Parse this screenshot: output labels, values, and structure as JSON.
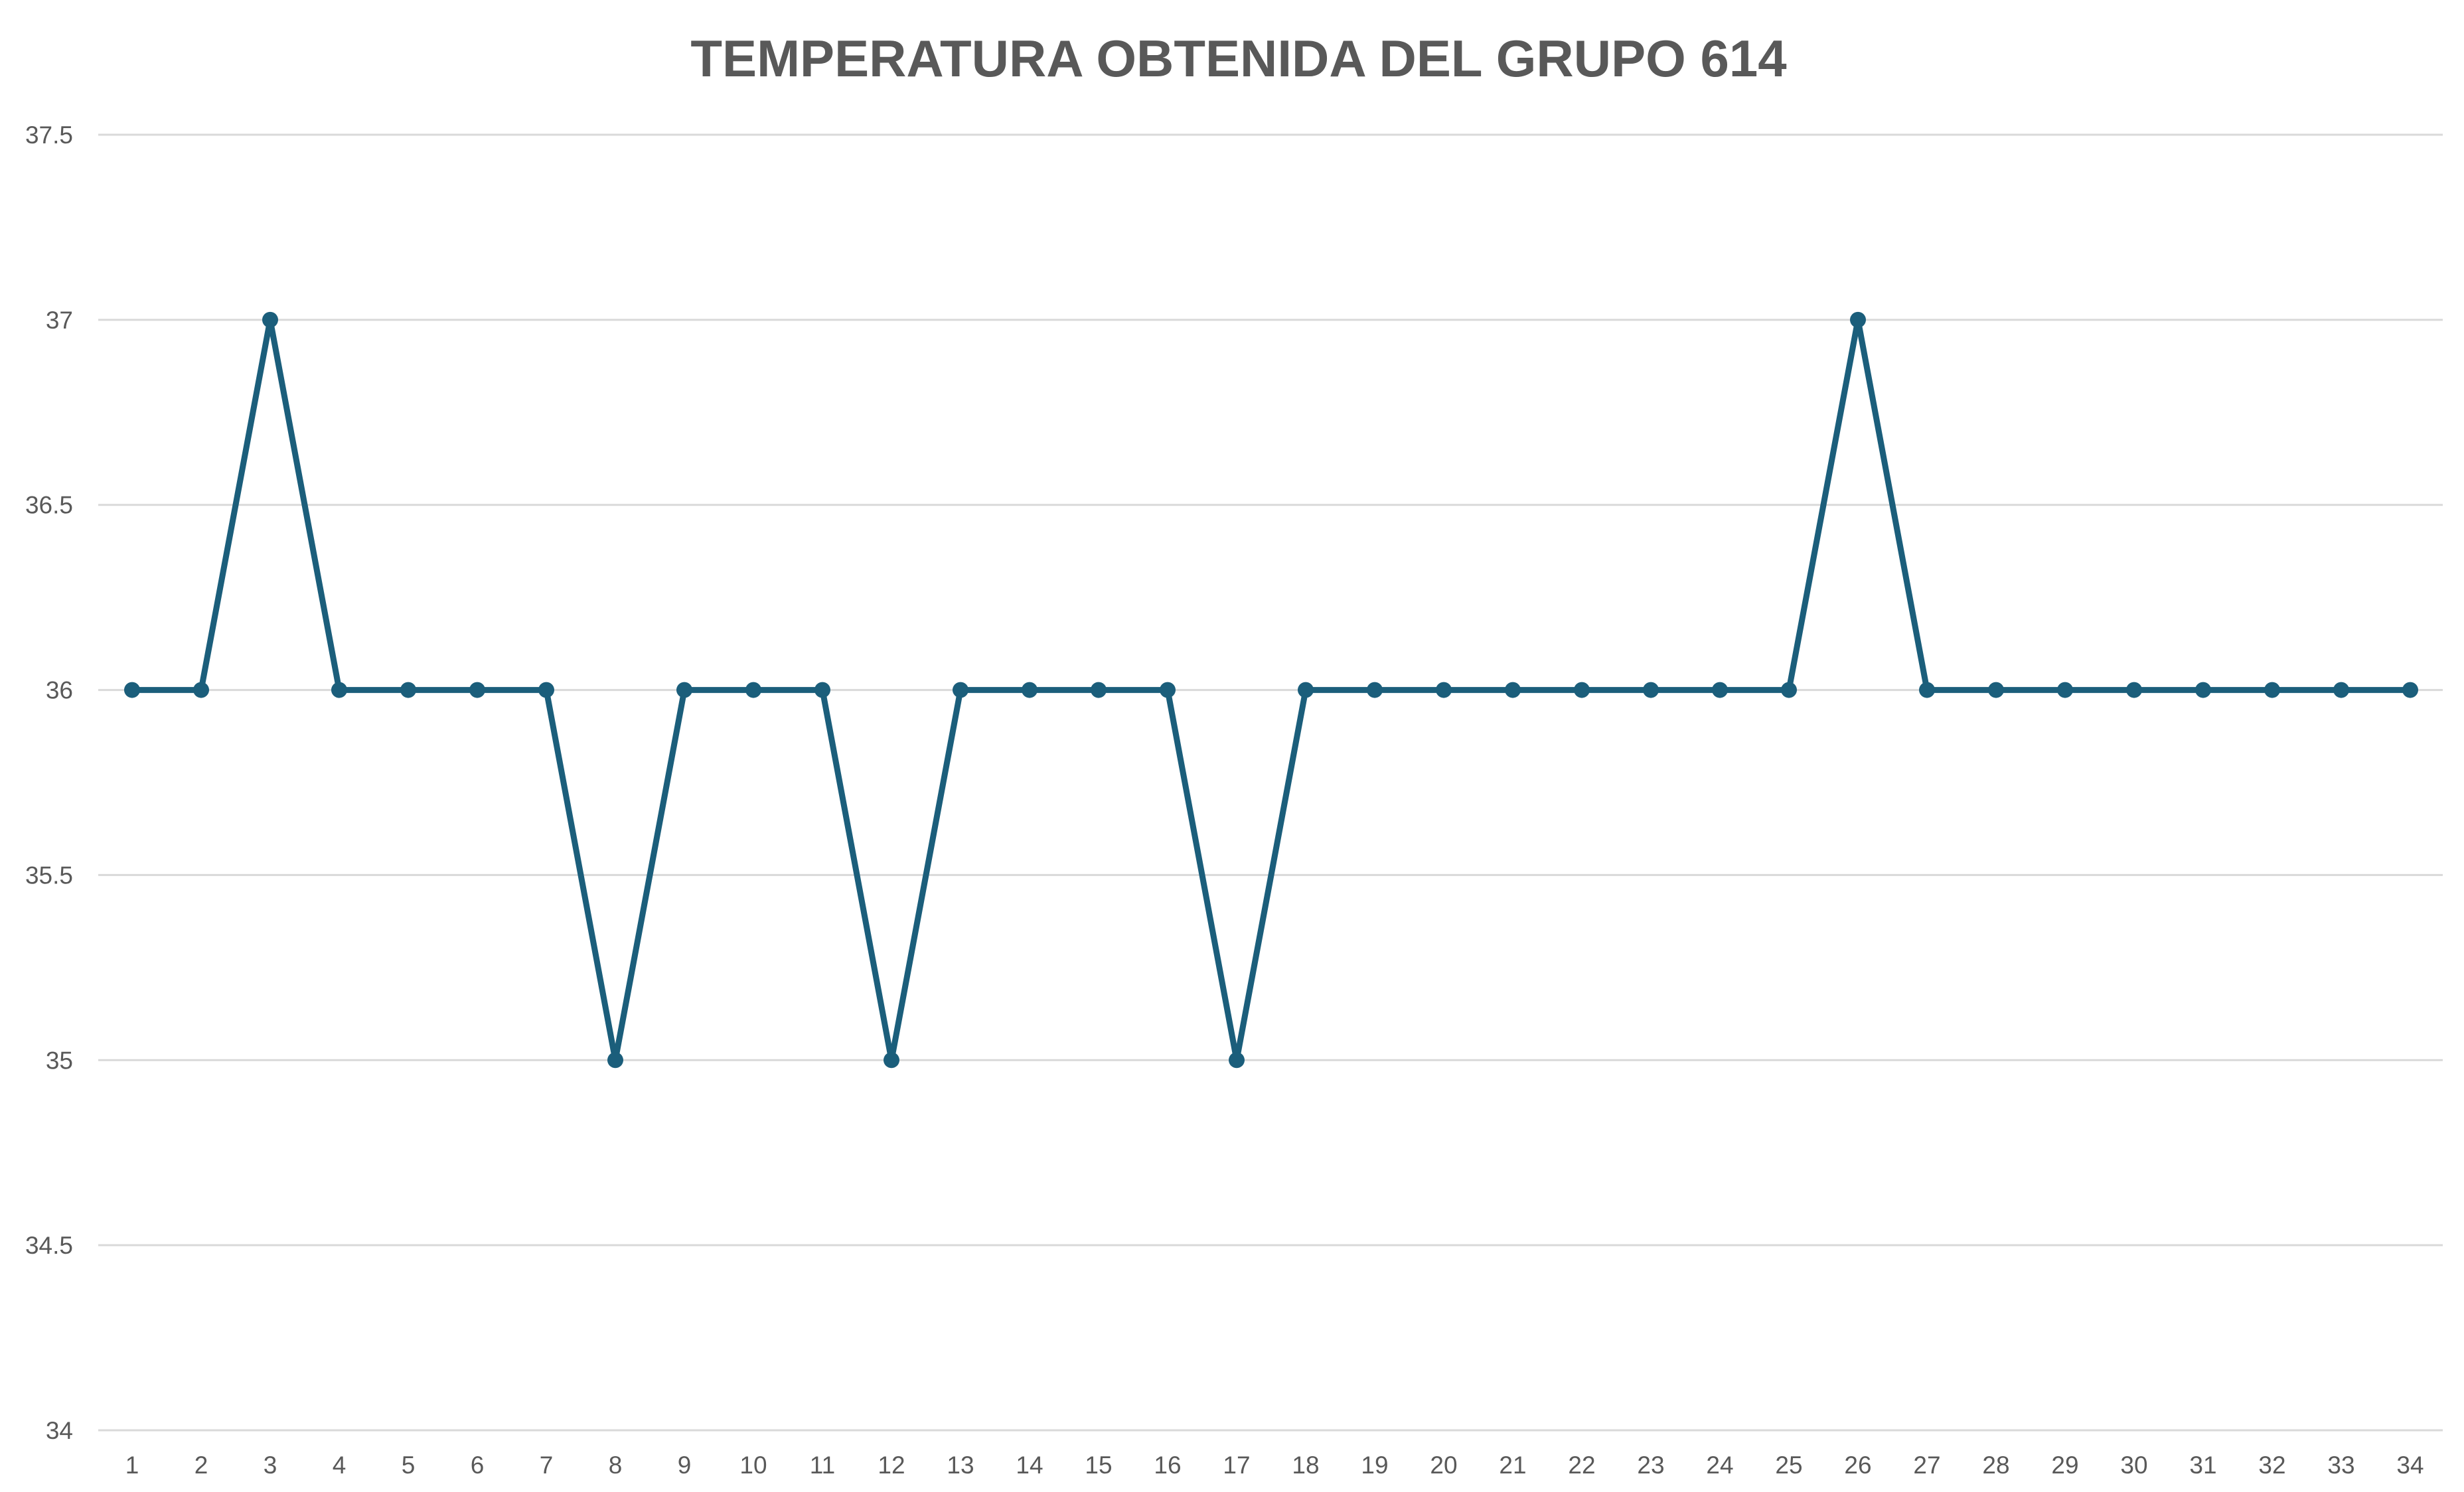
{
  "chart_data": {
    "type": "line",
    "title": "TEMPERATURA OBTENIDA DEL GRUPO 614",
    "xlabel": "",
    "ylabel": "",
    "x": [
      1,
      2,
      3,
      4,
      5,
      6,
      7,
      8,
      9,
      10,
      11,
      12,
      13,
      14,
      15,
      16,
      17,
      18,
      19,
      20,
      21,
      22,
      23,
      24,
      25,
      26,
      27,
      28,
      29,
      30,
      31,
      32,
      33,
      34
    ],
    "series": [
      {
        "values": [
          36,
          36,
          37,
          36,
          36,
          36,
          36,
          35,
          36,
          36,
          36,
          35,
          36,
          36,
          36,
          36,
          35,
          36,
          36,
          36,
          36,
          36,
          36,
          36,
          36,
          37,
          36,
          36,
          36,
          36,
          36,
          36,
          36,
          36
        ]
      }
    ],
    "ylim": [
      34,
      37.5
    ],
    "yticks": [
      "34",
      "34.5",
      "35",
      "35.5",
      "36",
      "36.5",
      "37",
      "37.5"
    ],
    "grid": true,
    "legend": "none",
    "colors": {
      "line": "#1b5e7b",
      "grid": "#d9d9d9",
      "text": "#595959"
    }
  }
}
